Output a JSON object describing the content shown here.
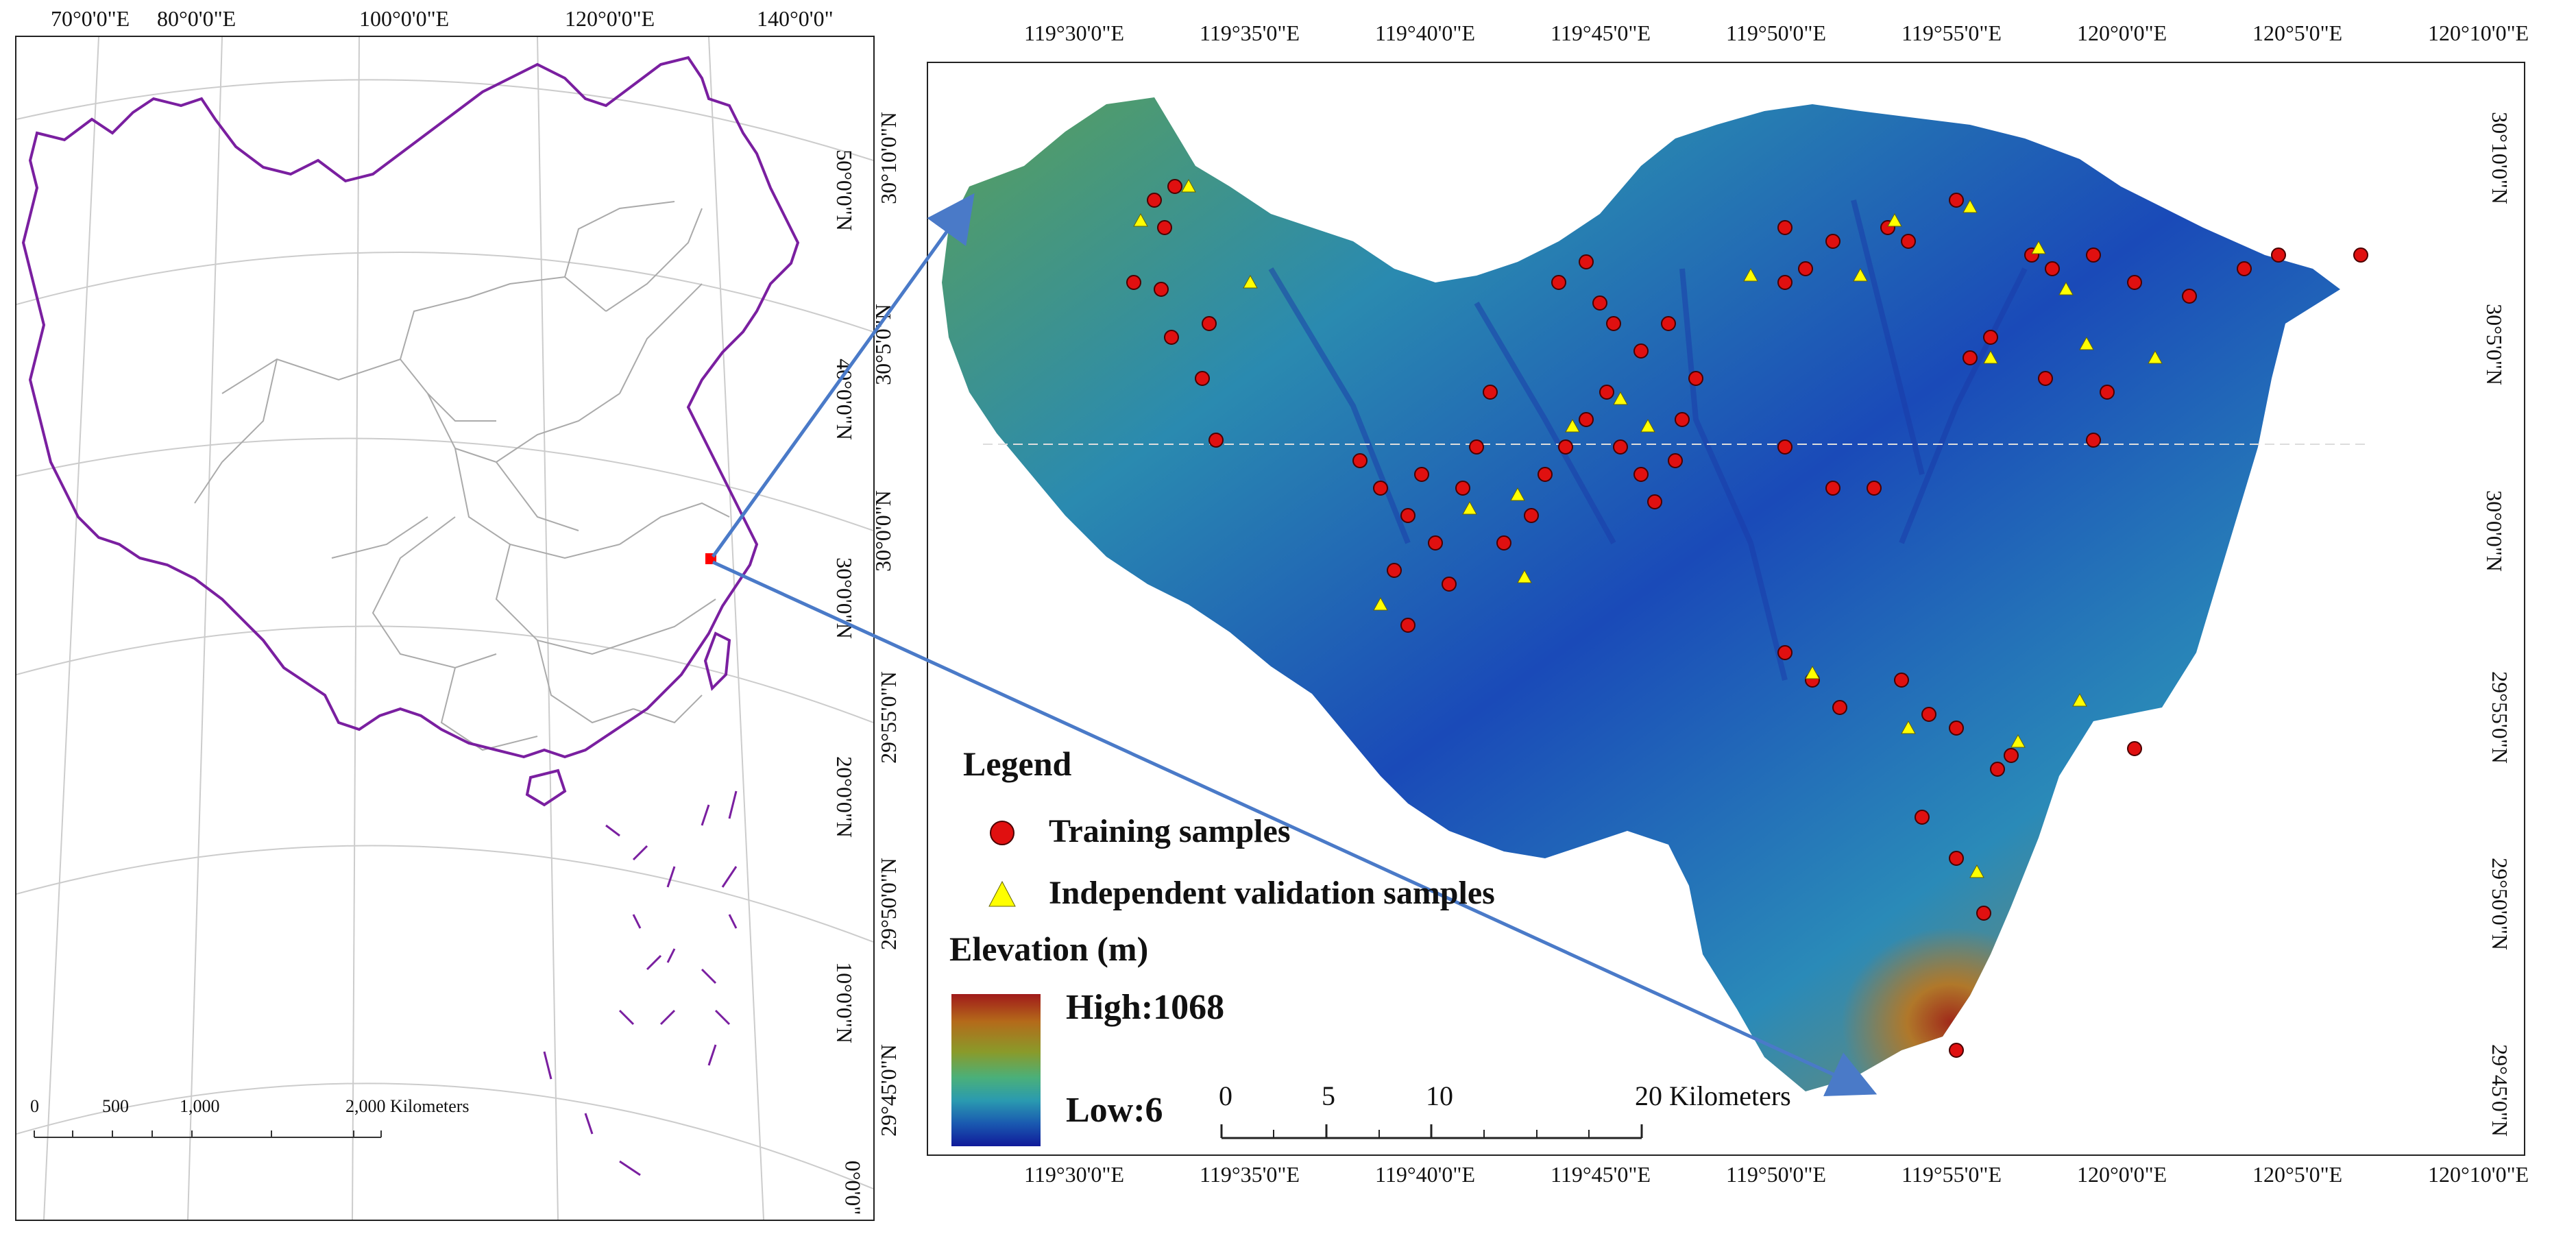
{
  "left_map": {
    "top_lon_labels": [
      "70°0'0\"E",
      "80°0'0\"E",
      "100°0'0\"E",
      "120°0'0\"E",
      "140°0'0\""
    ],
    "right_lat_labels": [
      "50°0'0\"N",
      "40°0'0\"N",
      "30°0'0\"N",
      "20°0'0\"N",
      "10°0'0\"N",
      "0°0'0\""
    ],
    "scale_numbers": [
      "0",
      "500",
      "1,000",
      "2,000 Kilometers"
    ],
    "colors": {
      "boundary": "#7a1fa0",
      "provinces": "#aaaaaa",
      "study_area": "#ff0000",
      "graticule": "#cccccc"
    }
  },
  "right_map": {
    "top_lon_labels": [
      "119°30'0\"E",
      "119°35'0\"E",
      "119°40'0\"E",
      "119°45'0\"E",
      "119°50'0\"E",
      "119°55'0\"E",
      "120°0'0\"E",
      "120°5'0\"E",
      "120°10'0\"E"
    ],
    "bottom_lon_labels": [
      "119°30'0\"E",
      "119°35'0\"E",
      "119°40'0\"E",
      "119°45'0\"E",
      "119°50'0\"E",
      "119°55'0\"E",
      "120°0'0\"E",
      "120°5'0\"E",
      "120°10'0\"E"
    ],
    "left_lat_labels": [
      "30°10'0\"N",
      "30°5'0\"N",
      "30°0'0\"N",
      "29°55'0\"N",
      "29°50'0\"N",
      "29°45'0\"N"
    ],
    "right_lat_labels": [
      "30°10'0\"N",
      "30°5'0\"N",
      "30°0'0\"N",
      "29°55'0\"N",
      "29°50'0\"N",
      "29°45'0\"N"
    ],
    "legend": {
      "title": "Legend",
      "training": "Training samples",
      "validation": "Independent validation samples"
    },
    "elevation": {
      "title": "Elevation (m)",
      "high": "High:1068",
      "low": "Low:6"
    },
    "scale_numbers": [
      "0",
      "5",
      "10",
      "20 Kilometers"
    ],
    "colors": {
      "training": "#e01010",
      "validation": "#ffff00",
      "arrow": "#4a7ac8"
    }
  }
}
